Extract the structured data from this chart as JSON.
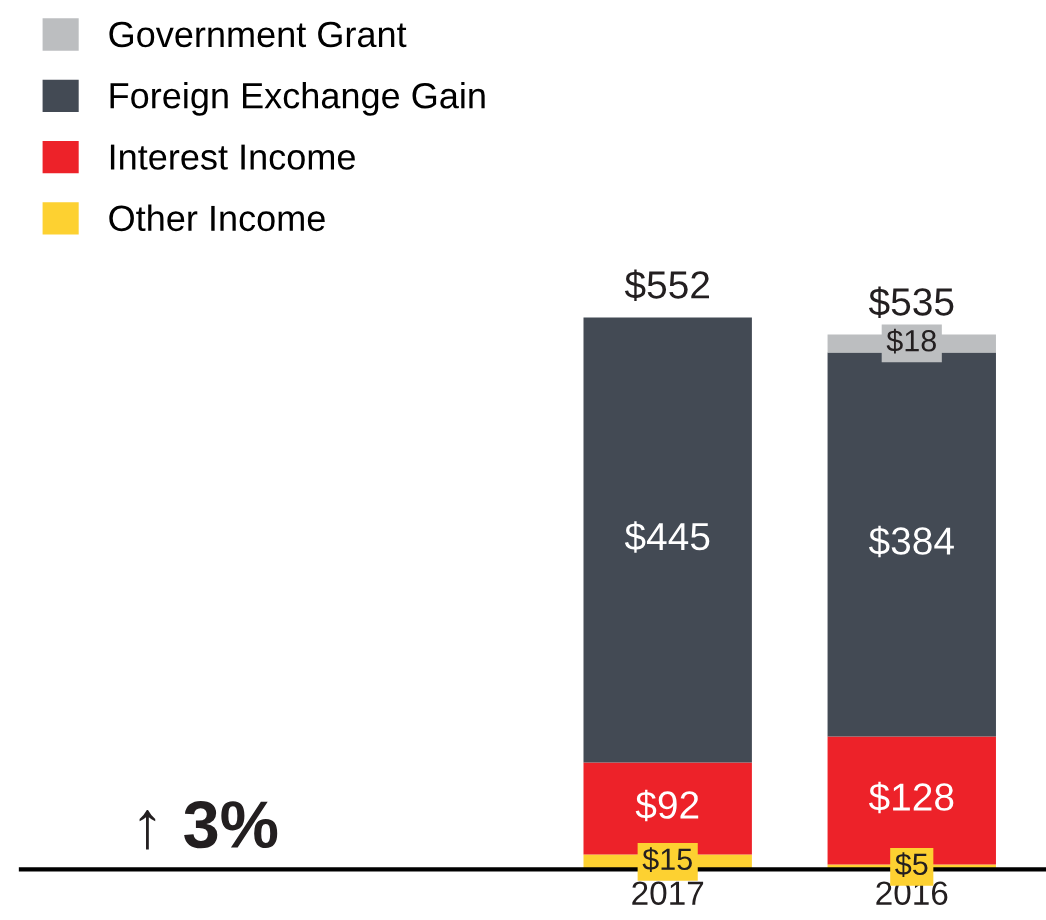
{
  "chart_data": {
    "type": "bar",
    "stacked": true,
    "categories": [
      "2017",
      "2016"
    ],
    "series": [
      {
        "name": "Other Income",
        "color": "#fdd131",
        "values": [
          15,
          5
        ],
        "value_labels": [
          "$15",
          "$5"
        ]
      },
      {
        "name": "Interest Income",
        "color": "#ed2229",
        "values": [
          92,
          128
        ],
        "value_labels": [
          "$92",
          "$128"
        ]
      },
      {
        "name": "Foreign Exchange Gain",
        "color": "#434a54",
        "values": [
          445,
          384
        ],
        "value_labels": [
          "$445",
          "$384"
        ]
      },
      {
        "name": "Government Grant",
        "color": "#bcbec0",
        "values": [
          null,
          18
        ],
        "value_labels": [
          null,
          "$18"
        ]
      }
    ],
    "totals": [
      "$552",
      "$535"
    ],
    "annotations": [
      "↑ 3%"
    ],
    "legend": "top left",
    "grid": false
  }
}
